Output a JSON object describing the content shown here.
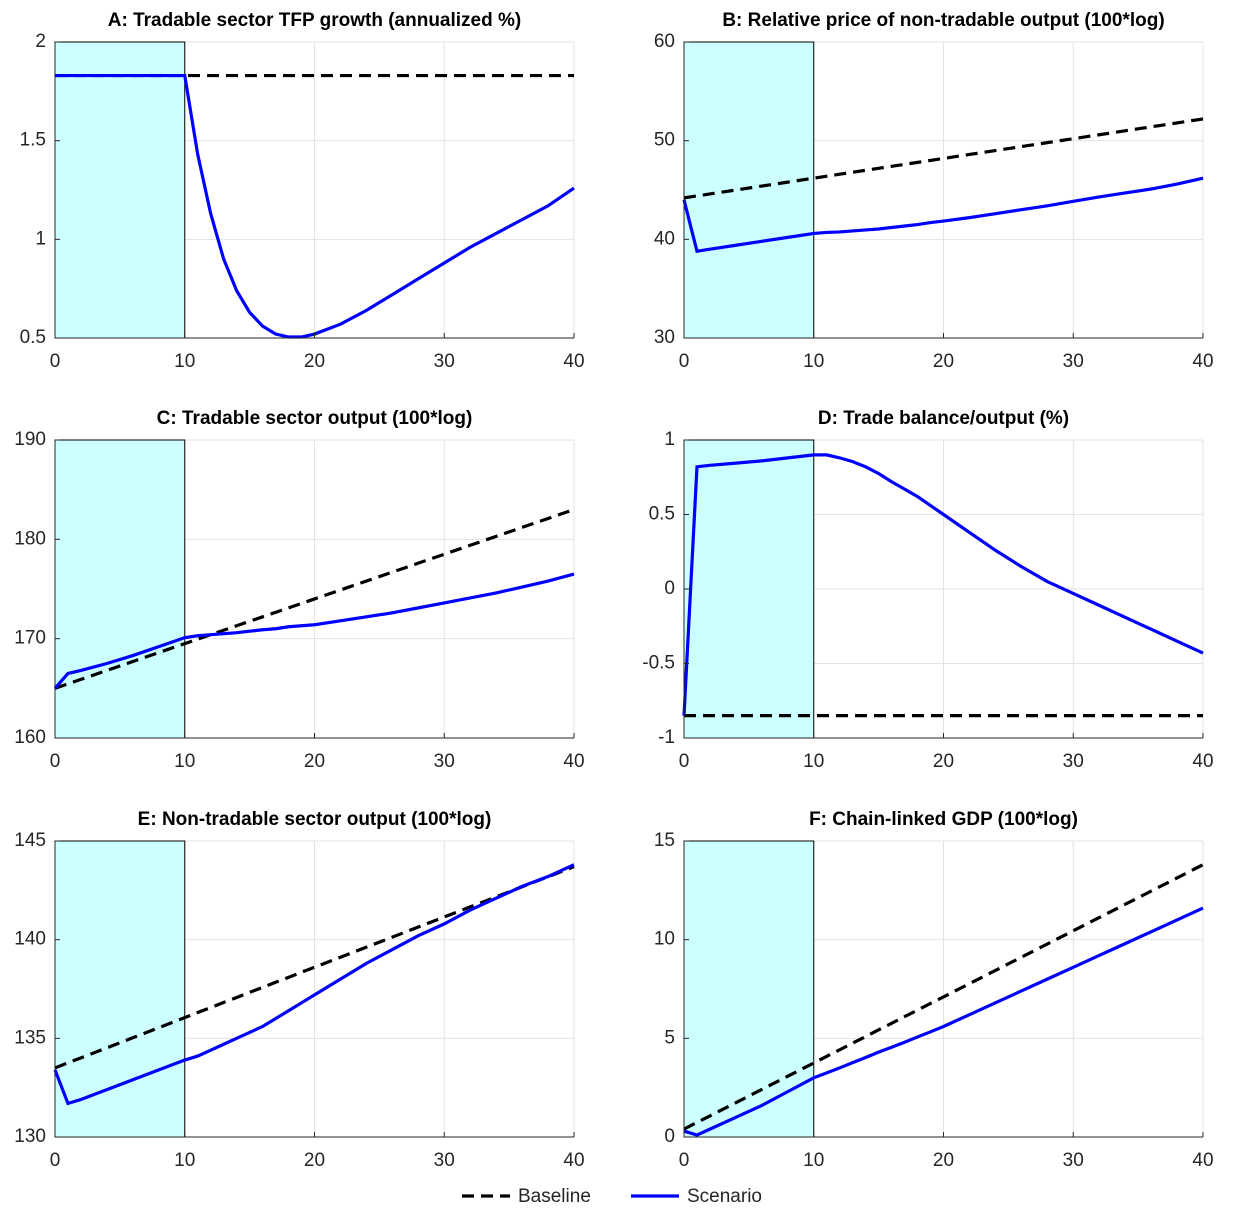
{
  "chart_data": [
    {
      "type": "line",
      "title": "A: Tradable sector TFP growth (annualized %)",
      "xlim": [
        0,
        40
      ],
      "xticks": [
        0,
        10,
        20,
        30,
        40
      ],
      "ylim": [
        0.5,
        2
      ],
      "yticks": [
        0.5,
        1,
        1.5,
        2
      ],
      "grid": true,
      "shaded_x": [
        0,
        10
      ],
      "x": [
        0,
        1,
        2,
        4,
        6,
        8,
        10,
        11,
        12,
        13,
        14,
        15,
        16,
        17,
        18,
        19,
        20,
        22,
        24,
        26,
        28,
        30,
        32,
        34,
        36,
        38,
        40
      ],
      "series": [
        {
          "values": [
            1.83,
            1.83,
            1.83,
            1.83,
            1.83,
            1.83,
            1.83,
            1.83,
            1.83,
            1.83,
            1.83,
            1.83,
            1.83,
            1.83,
            1.83,
            1.83,
            1.83,
            1.83,
            1.83,
            1.83,
            1.83,
            1.83,
            1.83,
            1.83,
            1.83,
            1.83,
            1.83
          ]
        },
        {
          "values": [
            1.83,
            1.83,
            1.83,
            1.83,
            1.83,
            1.83,
            1.83,
            1.43,
            1.13,
            0.9,
            0.74,
            0.63,
            0.56,
            0.52,
            0.505,
            0.505,
            0.52,
            0.57,
            0.64,
            0.72,
            0.8,
            0.88,
            0.96,
            1.03,
            1.1,
            1.17,
            1.26
          ]
        }
      ]
    },
    {
      "type": "line",
      "title": "B: Relative price of non-tradable output (100*log)",
      "xlim": [
        0,
        40
      ],
      "xticks": [
        0,
        10,
        20,
        30,
        40
      ],
      "ylim": [
        30,
        60
      ],
      "yticks": [
        30,
        40,
        50,
        60
      ],
      "grid": true,
      "shaded_x": [
        0,
        10
      ],
      "x": [
        0,
        1,
        2,
        4,
        6,
        8,
        10,
        11,
        12,
        13,
        14,
        15,
        16,
        17,
        18,
        19,
        20,
        22,
        24,
        26,
        28,
        30,
        32,
        34,
        36,
        38,
        40
      ],
      "series": [
        {
          "values": [
            44.2,
            44.4,
            44.6,
            45,
            45.4,
            45.8,
            46.2,
            46.4,
            46.6,
            46.8,
            47,
            47.2,
            47.4,
            47.6,
            47.8,
            48,
            48.2,
            48.6,
            49,
            49.4,
            49.8,
            50.2,
            50.6,
            51,
            51.4,
            51.8,
            52.2
          ]
        },
        {
          "values": [
            44,
            38.8,
            39,
            39.4,
            39.8,
            40.2,
            40.6,
            40.7,
            40.75,
            40.85,
            40.95,
            41.05,
            41.2,
            41.35,
            41.5,
            41.7,
            41.85,
            42.2,
            42.6,
            43,
            43.4,
            43.85,
            44.3,
            44.7,
            45.1,
            45.6,
            46.2
          ]
        }
      ]
    },
    {
      "type": "line",
      "title": "C: Tradable sector output (100*log)",
      "xlim": [
        0,
        40
      ],
      "xticks": [
        0,
        10,
        20,
        30,
        40
      ],
      "ylim": [
        160,
        190
      ],
      "yticks": [
        160,
        170,
        180,
        190
      ],
      "grid": true,
      "shaded_x": [
        0,
        10
      ],
      "x": [
        0,
        1,
        2,
        4,
        6,
        8,
        10,
        11,
        12,
        13,
        14,
        15,
        16,
        17,
        18,
        19,
        20,
        22,
        24,
        26,
        28,
        30,
        32,
        34,
        36,
        38,
        40
      ],
      "series": [
        {
          "values": [
            165,
            165.45,
            165.9,
            166.8,
            167.7,
            168.6,
            169.5,
            169.95,
            170.4,
            170.85,
            171.3,
            171.75,
            172.2,
            172.65,
            173.1,
            173.55,
            174,
            174.9,
            175.8,
            176.7,
            177.6,
            178.5,
            179.4,
            180.3,
            181.2,
            182.1,
            183
          ]
        },
        {
          "values": [
            165,
            166.5,
            166.8,
            167.5,
            168.3,
            169.2,
            170.1,
            170.3,
            170.4,
            170.5,
            170.6,
            170.75,
            170.9,
            171,
            171.2,
            171.3,
            171.4,
            171.8,
            172.2,
            172.6,
            173.1,
            173.6,
            174.1,
            174.6,
            175.2,
            175.8,
            176.5
          ]
        }
      ]
    },
    {
      "type": "line",
      "title": "D: Trade balance/output (%)",
      "xlim": [
        0,
        40
      ],
      "xticks": [
        0,
        10,
        20,
        30,
        40
      ],
      "ylim": [
        -1,
        1
      ],
      "yticks": [
        -1,
        -0.5,
        0,
        0.5,
        1
      ],
      "grid": true,
      "shaded_x": [
        0,
        10
      ],
      "x": [
        0,
        1,
        2,
        4,
        6,
        8,
        10,
        11,
        12,
        13,
        14,
        15,
        16,
        17,
        18,
        19,
        20,
        22,
        24,
        26,
        28,
        30,
        32,
        34,
        36,
        38,
        40
      ],
      "series": [
        {
          "values": [
            -0.85,
            -0.85,
            -0.85,
            -0.85,
            -0.85,
            -0.85,
            -0.85,
            -0.85,
            -0.85,
            -0.85,
            -0.85,
            -0.85,
            -0.85,
            -0.85,
            -0.85,
            -0.85,
            -0.85,
            -0.85,
            -0.85,
            -0.85,
            -0.85,
            -0.85,
            -0.85,
            -0.85,
            -0.85,
            -0.85,
            -0.85
          ]
        },
        {
          "values": [
            -0.85,
            0.82,
            0.83,
            0.845,
            0.86,
            0.88,
            0.9,
            0.9,
            0.88,
            0.855,
            0.82,
            0.775,
            0.72,
            0.67,
            0.62,
            0.56,
            0.5,
            0.38,
            0.26,
            0.15,
            0.05,
            -0.03,
            -0.11,
            -0.19,
            -0.27,
            -0.35,
            -0.43
          ]
        }
      ]
    },
    {
      "type": "line",
      "title": "E: Non-tradable sector output (100*log)",
      "xlim": [
        0,
        40
      ],
      "xticks": [
        0,
        10,
        20,
        30,
        40
      ],
      "ylim": [
        130,
        145
      ],
      "yticks": [
        130,
        135,
        140,
        145
      ],
      "grid": true,
      "shaded_x": [
        0,
        10
      ],
      "x": [
        0,
        1,
        2,
        4,
        6,
        8,
        10,
        11,
        12,
        13,
        14,
        15,
        16,
        17,
        18,
        19,
        20,
        22,
        24,
        26,
        28,
        30,
        32,
        34,
        36,
        38,
        40
      ],
      "series": [
        {
          "values": [
            133.5,
            133.76,
            134.01,
            134.52,
            135.03,
            135.54,
            136.05,
            136.31,
            136.56,
            136.82,
            137.07,
            137.33,
            137.58,
            137.84,
            138.09,
            138.35,
            138.6,
            139.11,
            139.62,
            140.13,
            140.64,
            141.15,
            141.66,
            142.17,
            142.68,
            143.19,
            143.7
          ]
        },
        {
          "values": [
            133.4,
            131.7,
            131.9,
            132.4,
            132.9,
            133.4,
            133.9,
            134.1,
            134.4,
            134.7,
            135,
            135.3,
            135.6,
            136,
            136.4,
            136.8,
            137.2,
            138,
            138.8,
            139.5,
            140.2,
            140.8,
            141.5,
            142.1,
            142.7,
            143.2,
            143.8
          ]
        }
      ]
    },
    {
      "type": "line",
      "title": "F: Chain-linked GDP (100*log)",
      "xlim": [
        0,
        40
      ],
      "xticks": [
        0,
        10,
        20,
        30,
        40
      ],
      "ylim": [
        0,
        15
      ],
      "yticks": [
        0,
        5,
        10,
        15
      ],
      "grid": true,
      "shaded_x": [
        0,
        10
      ],
      "x": [
        0,
        1,
        2,
        4,
        6,
        8,
        10,
        11,
        12,
        13,
        14,
        15,
        16,
        17,
        18,
        19,
        20,
        22,
        24,
        26,
        28,
        30,
        32,
        34,
        36,
        38,
        40
      ],
      "series": [
        {
          "values": [
            0.4,
            0.74,
            1.07,
            1.74,
            2.41,
            3.08,
            3.75,
            4.09,
            4.42,
            4.76,
            5.09,
            5.43,
            5.76,
            6.1,
            6.43,
            6.77,
            7.1,
            7.77,
            8.44,
            9.11,
            9.78,
            10.45,
            11.12,
            11.79,
            12.46,
            13.13,
            13.8
          ]
        },
        {
          "values": [
            0.3,
            0.1,
            0.4,
            1,
            1.6,
            2.3,
            3,
            3.25,
            3.5,
            3.77,
            4.03,
            4.3,
            4.55,
            4.8,
            5.07,
            5.33,
            5.6,
            6.2,
            6.8,
            7.4,
            8,
            8.6,
            9.2,
            9.8,
            10.4,
            11,
            11.6
          ]
        }
      ]
    }
  ],
  "legend": {
    "items": [
      {
        "name": "Baseline",
        "color": "#000000",
        "dashed": true
      },
      {
        "name": "Scenario",
        "color": "#0000ff",
        "dashed": false
      }
    ]
  },
  "shade_color": "#ccffff"
}
